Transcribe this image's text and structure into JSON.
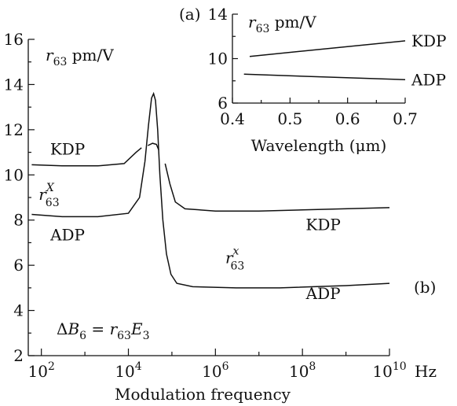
{
  "chart_data": [
    {
      "id": "main",
      "type": "line",
      "panel_label": "(b)",
      "xlabel": "Modulation frequency",
      "x_unit": "Hz",
      "x_scale": "log",
      "xlim": [
        50,
        10000000000
      ],
      "x_ticks": [
        100,
        10000,
        1000000,
        100000000,
        10000000000
      ],
      "x_tick_labels": [
        {
          "base": "10",
          "exp": "2"
        },
        {
          "base": "10",
          "exp": "4"
        },
        {
          "base": "10",
          "exp": "6"
        },
        {
          "base": "10",
          "exp": "8"
        },
        {
          "base": "10",
          "exp": "10"
        }
      ],
      "ylabel": {
        "sym": "r",
        "sub": "63",
        "unit": " pm/V"
      },
      "ylim": [
        2,
        16
      ],
      "y_ticks": [
        2,
        4,
        6,
        8,
        10,
        12,
        14,
        16
      ],
      "y_tick_labels": [
        "2",
        "4",
        "6",
        "8",
        "10",
        "12",
        "14",
        "16"
      ],
      "annotation": {
        "lhs": "ΔB",
        "lhs_sub": "6",
        "eq": " = ",
        "sym": "r",
        "sub": "63",
        "rhs": "E",
        "rhs_sub": "3"
      },
      "series": [
        {
          "key": "kdp_low",
          "values": [
            [
              60,
              10.45
            ],
            [
              300,
              10.4
            ],
            [
              2000,
              10.4
            ],
            [
              8000,
              10.5
            ],
            [
              15000,
              11.0
            ],
            [
              20000,
              11.2
            ]
          ]
        },
        {
          "key": "kdp_peak",
          "values": [
            [
              28000,
              11.3
            ],
            [
              36000,
              11.4
            ],
            [
              44000,
              11.35
            ],
            [
              50000,
              11.1
            ]
          ]
        },
        {
          "key": "kdp_high",
          "values": [
            [
              70000,
              10.5
            ],
            [
              90000,
              9.6
            ],
            [
              120000,
              8.8
            ],
            [
              200000,
              8.5
            ],
            [
              1000000,
              8.4
            ],
            [
              10000000,
              8.4
            ],
            [
              100000000,
              8.45
            ],
            [
              10000000000,
              8.55
            ]
          ]
        },
        {
          "key": "adp",
          "values": [
            [
              60,
              8.25
            ],
            [
              300,
              8.15
            ],
            [
              2000,
              8.15
            ],
            [
              10000,
              8.3
            ],
            [
              18000,
              9.0
            ],
            [
              24000,
              10.6
            ],
            [
              29000,
              12.2
            ],
            [
              34000,
              13.4
            ],
            [
              38000,
              13.6
            ],
            [
              42000,
              13.3
            ],
            [
              47000,
              12.0
            ],
            [
              53000,
              10.0
            ],
            [
              62000,
              8.0
            ],
            [
              75000,
              6.5
            ],
            [
              95000,
              5.6
            ],
            [
              130000,
              5.2
            ],
            [
              300000,
              5.05
            ],
            [
              3000000,
              5.0
            ],
            [
              30000000,
              5.0
            ],
            [
              1000000000,
              5.1
            ],
            [
              10000000000,
              5.2
            ]
          ]
        }
      ],
      "labels": [
        {
          "text": "KDP",
          "x": 400,
          "y": 10.9
        },
        {
          "text": "ADP",
          "x": 400,
          "y": 7.1
        },
        {
          "text": "KDP",
          "x": 300000000,
          "y": 7.55
        },
        {
          "text": "ADP",
          "x": 300000000,
          "y": 4.5
        }
      ],
      "r_labels": [
        {
          "sym": "r",
          "sup": "X",
          "sub": "63",
          "x": 150,
          "y": 8.9
        },
        {
          "sym": "r",
          "sup": "x",
          "sub": "63",
          "x": 2800000,
          "y": 6.1
        }
      ]
    },
    {
      "id": "inset",
      "type": "line",
      "panel_label": "(a)",
      "xlabel": "Wavelength (μm)",
      "xlim": [
        0.4,
        0.7
      ],
      "x_ticks": [
        0.4,
        0.5,
        0.6,
        0.7
      ],
      "x_tick_labels": [
        "0.4",
        "0.5",
        "0.6",
        "0.7"
      ],
      "ylabel": {
        "sym": "r",
        "sub": "63",
        "unit": " pm/V"
      },
      "ylim": [
        6,
        14
      ],
      "y_ticks": [
        6,
        10,
        14
      ],
      "y_tick_labels": [
        "6",
        "10",
        "14"
      ],
      "series": [
        {
          "key": "KDP",
          "name": "KDP",
          "values": [
            [
              0.43,
              10.2
            ],
            [
              0.7,
              11.6
            ]
          ]
        },
        {
          "key": "ADP",
          "name": "ADP",
          "values": [
            [
              0.42,
              8.6
            ],
            [
              0.7,
              8.1
            ]
          ]
        }
      ]
    }
  ]
}
